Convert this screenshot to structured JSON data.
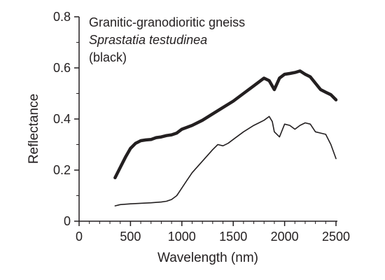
{
  "chart_data": {
    "type": "line",
    "annotation": {
      "line1": "Granitic-granodioritic gneiss",
      "line2": "Sprastatia testudinea",
      "line3": "(black)"
    },
    "xlabel": "Wavelength (nm)",
    "ylabel": "Reflectance",
    "xlim": [
      0,
      2500
    ],
    "ylim": [
      0,
      0.8
    ],
    "x_ticks": [
      0,
      500,
      1000,
      1500,
      2000,
      2500
    ],
    "y_ticks": [
      0,
      0.2,
      0.4,
      0.6,
      0.8
    ],
    "x_tick_labels": [
      "0",
      "500",
      "1000",
      "1500",
      "2000",
      "2500"
    ],
    "y_tick_labels": [
      "0",
      "0.2",
      "0.4",
      "0.6",
      "0.8"
    ],
    "grid": false,
    "legend": "none",
    "series": [
      {
        "color": "#231f20",
        "style": "thick",
        "x": [
          350,
          400,
          450,
          500,
          550,
          600,
          650,
          700,
          750,
          800,
          850,
          900,
          950,
          1000,
          1100,
          1200,
          1300,
          1400,
          1500,
          1600,
          1700,
          1750,
          1800,
          1850,
          1900,
          1950,
          2000,
          2050,
          2100,
          2150,
          2200,
          2250,
          2300,
          2350,
          2400,
          2450,
          2500
        ],
        "y": [
          0.17,
          0.21,
          0.25,
          0.285,
          0.305,
          0.315,
          0.318,
          0.32,
          0.327,
          0.33,
          0.335,
          0.338,
          0.345,
          0.36,
          0.375,
          0.395,
          0.42,
          0.445,
          0.47,
          0.5,
          0.53,
          0.545,
          0.56,
          0.55,
          0.515,
          0.56,
          0.575,
          0.578,
          0.582,
          0.588,
          0.575,
          0.565,
          0.54,
          0.515,
          0.505,
          0.495,
          0.475
        ]
      },
      {
        "color": "#231f20",
        "style": "thin",
        "x": [
          350,
          400,
          500,
          600,
          700,
          800,
          850,
          900,
          950,
          1000,
          1050,
          1100,
          1200,
          1300,
          1350,
          1400,
          1450,
          1500,
          1600,
          1700,
          1750,
          1800,
          1850,
          1880,
          1900,
          1950,
          2000,
          2050,
          2100,
          2150,
          2200,
          2250,
          2300,
          2350,
          2400,
          2450,
          2500
        ],
        "y": [
          0.06,
          0.065,
          0.068,
          0.07,
          0.072,
          0.075,
          0.078,
          0.085,
          0.1,
          0.13,
          0.16,
          0.19,
          0.235,
          0.28,
          0.3,
          0.295,
          0.305,
          0.32,
          0.35,
          0.375,
          0.385,
          0.395,
          0.41,
          0.39,
          0.35,
          0.33,
          0.38,
          0.375,
          0.36,
          0.375,
          0.385,
          0.38,
          0.35,
          0.345,
          0.34,
          0.3,
          0.245
        ]
      }
    ]
  }
}
